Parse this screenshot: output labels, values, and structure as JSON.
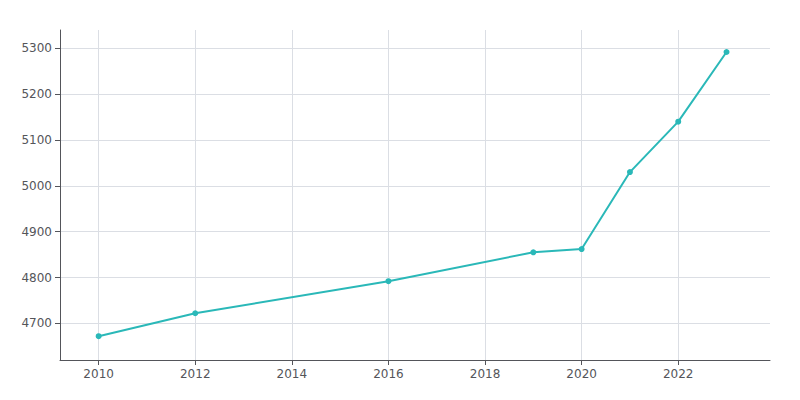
{
  "chart_data": {
    "type": "line",
    "x": [
      2010,
      2012,
      2016,
      2019,
      2020,
      2021,
      2022,
      2023
    ],
    "values": [
      4672,
      4722,
      4792,
      4855,
      4862,
      5030,
      5140,
      5292
    ],
    "color": "#2ab8b8",
    "marker": "circle",
    "xlim": [
      2009.2,
      2023.9
    ],
    "xticks": [
      2010,
      2012,
      2014,
      2016,
      2018,
      2020,
      2022
    ],
    "ylim": [
      4620,
      5340
    ],
    "yticks": [
      4700,
      4800,
      4900,
      5000,
      5100,
      5200,
      5300
    ],
    "grid": true
  }
}
